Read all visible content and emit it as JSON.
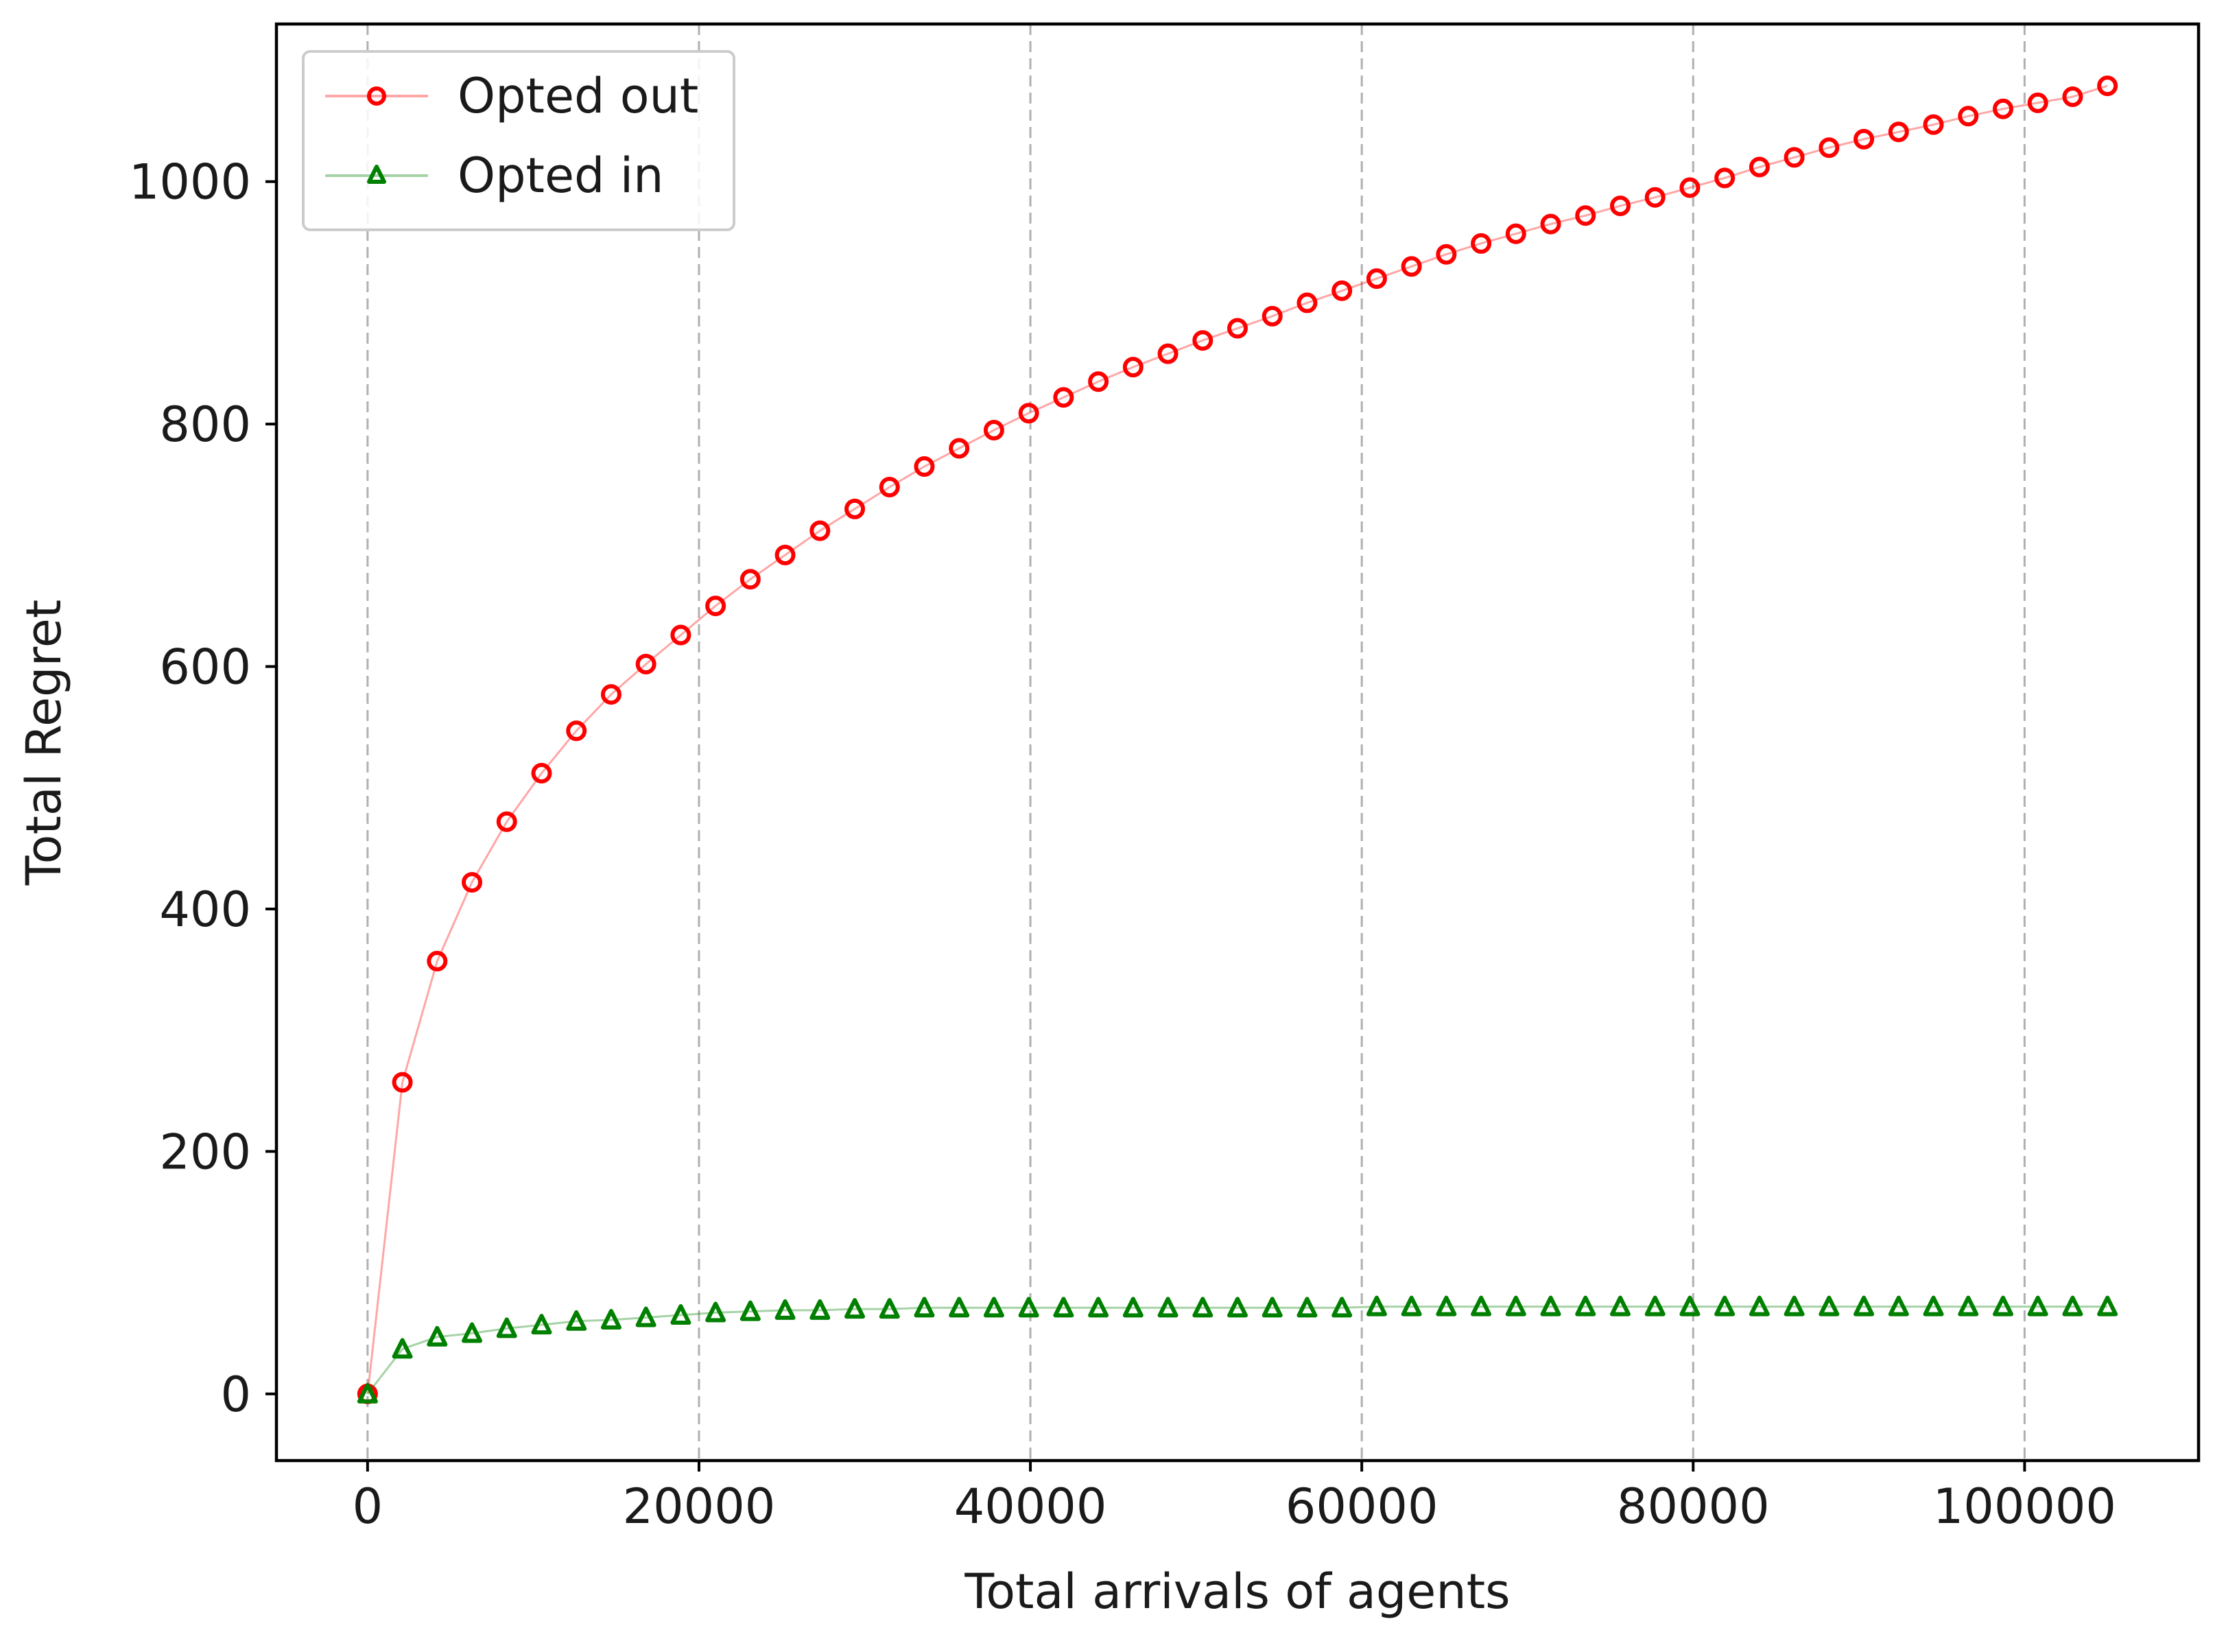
{
  "chart_data": {
    "type": "line",
    "title": "",
    "xlabel": "Total arrivals of agents",
    "ylabel": "Total Regret",
    "xlim": [
      -5500,
      110500
    ],
    "ylim": [
      -55,
      1130
    ],
    "xticks": [
      0,
      20000,
      40000,
      60000,
      80000,
      100000
    ],
    "yticks": [
      0,
      200,
      400,
      600,
      800,
      1000
    ],
    "xtick_labels": [
      "0",
      "20000",
      "40000",
      "60000",
      "80000",
      "100000"
    ],
    "ytick_labels": [
      "0",
      "200",
      "400",
      "600",
      "800",
      "1000"
    ],
    "grid": "vertical dashed",
    "legend_position": "upper-left",
    "x": [
      0,
      2100,
      4200,
      6300,
      8400,
      10500,
      12600,
      14700,
      16800,
      18900,
      21000,
      23100,
      25200,
      27300,
      29400,
      31500,
      33600,
      35700,
      37800,
      39900,
      42000,
      44100,
      46200,
      48300,
      50400,
      52500,
      54600,
      56700,
      58800,
      60900,
      63000,
      65100,
      67200,
      69300,
      71400,
      73500,
      75600,
      77700,
      79800,
      81900,
      84000,
      86100,
      88200,
      90300,
      92400,
      94500,
      96600,
      98700,
      100800,
      102900,
      105000
    ],
    "series": [
      {
        "name": "Opted out",
        "color": "#ff0000",
        "marker": "circle",
        "values": [
          0,
          257,
          357,
          422,
          472,
          512,
          547,
          577,
          602,
          626,
          650,
          672,
          692,
          712,
          730,
          748,
          765,
          780,
          795,
          809,
          822,
          835,
          847,
          858,
          869,
          879,
          889,
          900,
          910,
          920,
          930,
          940,
          949,
          957,
          965,
          972,
          980,
          987,
          995,
          1003,
          1012,
          1020,
          1028,
          1035,
          1041,
          1047,
          1054,
          1060,
          1065,
          1070,
          1079
        ]
      },
      {
        "name": "Opted in",
        "color": "#008000",
        "marker": "triangle",
        "values": [
          0,
          37,
          47,
          50,
          54,
          57,
          60,
          61,
          63,
          65,
          67,
          68,
          69,
          69,
          70,
          70,
          71,
          71,
          71,
          71,
          71,
          71,
          71,
          71,
          71,
          71,
          71,
          71,
          71,
          72,
          72,
          72,
          72,
          72,
          72,
          72,
          72,
          72,
          72,
          72,
          72,
          72,
          72,
          72,
          72,
          72,
          72,
          72,
          72,
          72,
          72
        ]
      }
    ]
  }
}
